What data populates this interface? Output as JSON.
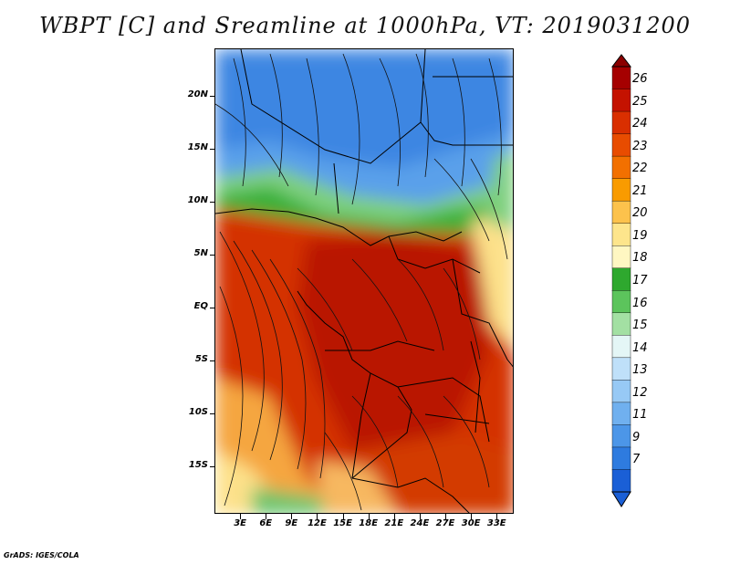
{
  "title": "WBPT [C] and Sreamline at 1000hPa, VT: 2019031200",
  "credit": "GrADS: IGES/COLA",
  "map": {
    "lat_range": [
      -19.5,
      24.5
    ],
    "lon_range": [
      0,
      35
    ],
    "lat_labels": [
      {
        "value": 20,
        "text": "20N"
      },
      {
        "value": 15,
        "text": "15N"
      },
      {
        "value": 10,
        "text": "10N"
      },
      {
        "value": 5,
        "text": "5N"
      },
      {
        "value": 0,
        "text": "EQ"
      },
      {
        "value": -5,
        "text": "5S"
      },
      {
        "value": -10,
        "text": "10S"
      },
      {
        "value": -15,
        "text": "15S"
      }
    ],
    "lon_labels": [
      {
        "value": 3,
        "text": "3E"
      },
      {
        "value": 6,
        "text": "6E"
      },
      {
        "value": 9,
        "text": "9E"
      },
      {
        "value": 12,
        "text": "12E"
      },
      {
        "value": 15,
        "text": "15E"
      },
      {
        "value": 18,
        "text": "18E"
      },
      {
        "value": 21,
        "text": "21E"
      },
      {
        "value": 24,
        "text": "24E"
      },
      {
        "value": 27,
        "text": "27E"
      },
      {
        "value": 30,
        "text": "30E"
      },
      {
        "value": 33,
        "text": "33E"
      }
    ]
  },
  "colorbar": {
    "labels": [
      "26",
      "25",
      "24",
      "23",
      "22",
      "21",
      "20",
      "19",
      "18",
      "17",
      "16",
      "15",
      "14",
      "13",
      "12",
      "11",
      "9",
      "7"
    ],
    "colors": [
      "#a50000",
      "#c41200",
      "#d92f00",
      "#e84c00",
      "#f27000",
      "#f99b00",
      "#fcc24c",
      "#fde58c",
      "#fff7c2",
      "#2ea82e",
      "#5cc45c",
      "#a3e0a3",
      "#e4f6f6",
      "#bfe0f9",
      "#97c9f5",
      "#70b0ef",
      "#4c96e8",
      "#2e7bdf",
      "#1a5fd6"
    ],
    "top_arrow_color": "#8b0000",
    "bottom_arrow_color": "#1a5fd6"
  }
}
